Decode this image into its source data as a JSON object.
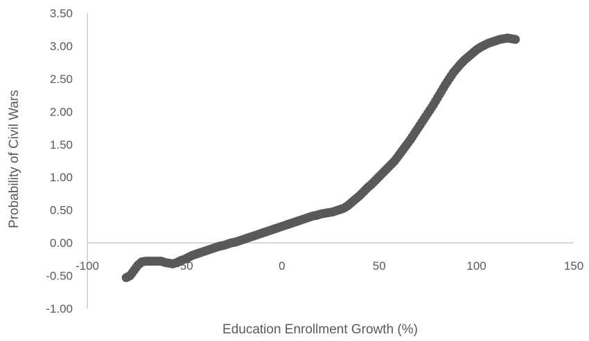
{
  "chart_data": {
    "type": "scatter",
    "xlabel": "Education Enrollment Growth (%)",
    "ylabel": "Probability of Civil Wars",
    "xlim": [
      -100,
      150
    ],
    "ylim": [
      -1.0,
      3.5
    ],
    "x_ticks": [
      "-100",
      "-50",
      "0",
      "50",
      "100",
      "150"
    ],
    "y_ticks": [
      "3.50",
      "3.00",
      "2.50",
      "2.00",
      "1.50",
      "1.00",
      "0.50",
      "0.00",
      "-0.50",
      "-1.00"
    ],
    "grid": false,
    "marker_color": "#595959",
    "series": [
      {
        "points": [
          [
            -80,
            -0.53
          ],
          [
            -78,
            -0.5
          ],
          [
            -76,
            -0.42
          ],
          [
            -74,
            -0.34
          ],
          [
            -72,
            -0.29
          ],
          [
            -70,
            -0.28
          ],
          [
            -68,
            -0.28
          ],
          [
            -66,
            -0.28
          ],
          [
            -64,
            -0.28
          ],
          [
            -62,
            -0.28
          ],
          [
            -60,
            -0.3
          ],
          [
            -58,
            -0.31
          ],
          [
            -56,
            -0.32
          ],
          [
            -54,
            -0.3
          ],
          [
            -52,
            -0.27
          ],
          [
            -50,
            -0.25
          ],
          [
            -48,
            -0.22
          ],
          [
            -46,
            -0.19
          ],
          [
            -44,
            -0.17
          ],
          [
            -42,
            -0.15
          ],
          [
            -40,
            -0.13
          ],
          [
            -38,
            -0.11
          ],
          [
            -36,
            -0.09
          ],
          [
            -34,
            -0.07
          ],
          [
            -32,
            -0.05
          ],
          [
            -30,
            -0.04
          ],
          [
            -28,
            -0.02
          ],
          [
            -26,
            0.0
          ],
          [
            -24,
            0.01
          ],
          [
            -22,
            0.03
          ],
          [
            -20,
            0.05
          ],
          [
            -18,
            0.07
          ],
          [
            -16,
            0.09
          ],
          [
            -14,
            0.11
          ],
          [
            -12,
            0.13
          ],
          [
            -10,
            0.15
          ],
          [
            -8,
            0.17
          ],
          [
            -6,
            0.19
          ],
          [
            -4,
            0.21
          ],
          [
            -2,
            0.23
          ],
          [
            0,
            0.25
          ],
          [
            2,
            0.27
          ],
          [
            4,
            0.29
          ],
          [
            6,
            0.31
          ],
          [
            8,
            0.33
          ],
          [
            10,
            0.35
          ],
          [
            12,
            0.37
          ],
          [
            14,
            0.39
          ],
          [
            16,
            0.41
          ],
          [
            18,
            0.42
          ],
          [
            20,
            0.44
          ],
          [
            22,
            0.45
          ],
          [
            24,
            0.46
          ],
          [
            26,
            0.47
          ],
          [
            28,
            0.49
          ],
          [
            30,
            0.51
          ],
          [
            32,
            0.53
          ],
          [
            34,
            0.57
          ],
          [
            36,
            0.62
          ],
          [
            38,
            0.67
          ],
          [
            40,
            0.72
          ],
          [
            42,
            0.78
          ],
          [
            44,
            0.84
          ],
          [
            46,
            0.89
          ],
          [
            48,
            0.95
          ],
          [
            50,
            1.01
          ],
          [
            52,
            1.07
          ],
          [
            54,
            1.13
          ],
          [
            56,
            1.19
          ],
          [
            58,
            1.25
          ],
          [
            60,
            1.33
          ],
          [
            62,
            1.41
          ],
          [
            64,
            1.49
          ],
          [
            66,
            1.57
          ],
          [
            68,
            1.66
          ],
          [
            70,
            1.75
          ],
          [
            72,
            1.84
          ],
          [
            74,
            1.93
          ],
          [
            76,
            2.02
          ],
          [
            78,
            2.11
          ],
          [
            80,
            2.21
          ],
          [
            82,
            2.31
          ],
          [
            84,
            2.41
          ],
          [
            86,
            2.5
          ],
          [
            88,
            2.59
          ],
          [
            90,
            2.66
          ],
          [
            92,
            2.73
          ],
          [
            94,
            2.79
          ],
          [
            96,
            2.84
          ],
          [
            98,
            2.89
          ],
          [
            100,
            2.94
          ],
          [
            102,
            2.98
          ],
          [
            104,
            3.01
          ],
          [
            106,
            3.04
          ],
          [
            108,
            3.06
          ],
          [
            110,
            3.08
          ],
          [
            112,
            3.1
          ],
          [
            114,
            3.11
          ],
          [
            116,
            3.12
          ],
          [
            118,
            3.11
          ],
          [
            120,
            3.1
          ]
        ]
      }
    ]
  }
}
